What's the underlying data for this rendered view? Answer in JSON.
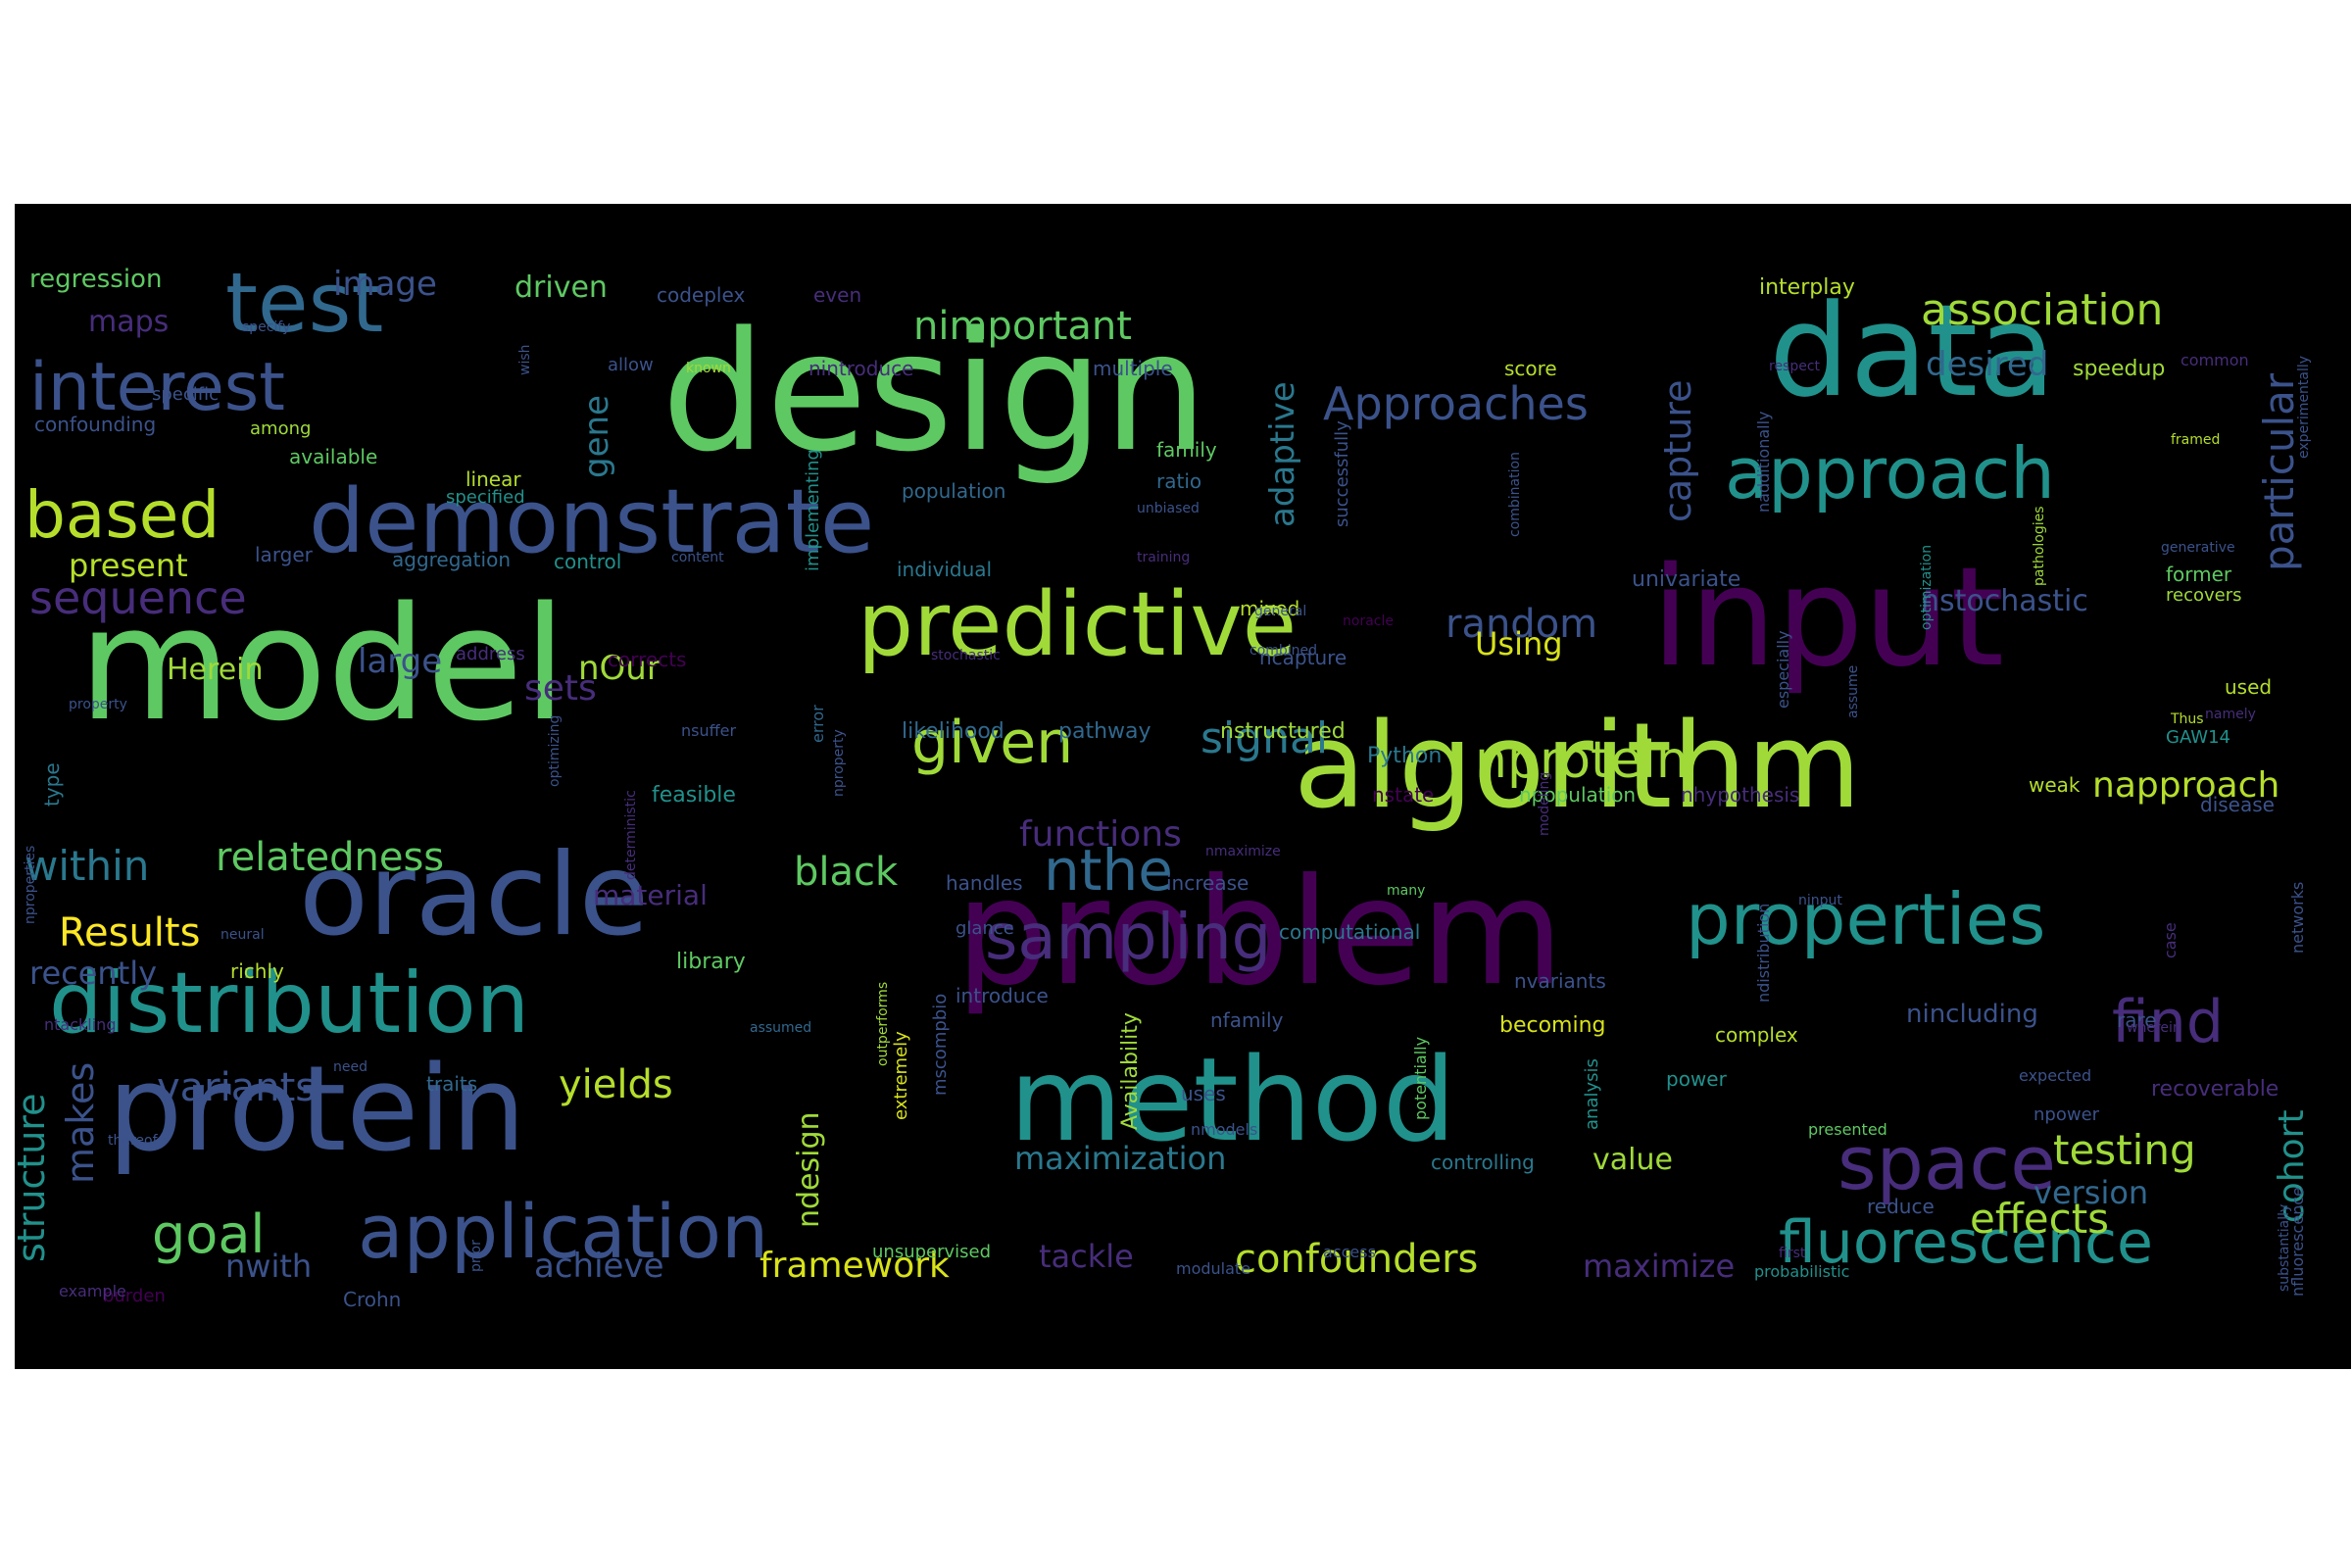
{
  "background_color": "#000000",
  "page_color": "#ffffff",
  "colormap": "viridis",
  "words": [
    {
      "text": "design",
      "size": 168,
      "color": "#5ec962"
    },
    {
      "text": "model",
      "size": 160,
      "color": "#5ec962"
    },
    {
      "text": "problem",
      "size": 150,
      "color": "#440154"
    },
    {
      "text": "input",
      "size": 140,
      "color": "#440154"
    },
    {
      "text": "data",
      "size": 130,
      "color": "#21918c"
    },
    {
      "text": "algorithm",
      "size": 120,
      "color": "#a0da39"
    },
    {
      "text": "protein",
      "size": 120,
      "color": "#3b528b"
    },
    {
      "text": "method",
      "size": 118,
      "color": "#21918c"
    },
    {
      "text": "oracle",
      "size": 116,
      "color": "#3b528b"
    },
    {
      "text": "demonstrate",
      "size": 90,
      "color": "#3b528b"
    },
    {
      "text": "predictive",
      "size": 90,
      "color": "#a0da39"
    },
    {
      "text": "distribution",
      "size": 86,
      "color": "#21918c"
    },
    {
      "text": "test",
      "size": 84,
      "color": "#31688e"
    },
    {
      "text": "application",
      "size": 76,
      "color": "#3b528b"
    },
    {
      "text": "space",
      "size": 76,
      "color": "#472d7b"
    },
    {
      "text": "approach",
      "size": 72,
      "color": "#21918c"
    },
    {
      "text": "properties",
      "size": 72,
      "color": "#21918c"
    },
    {
      "text": "interest",
      "size": 68,
      "color": "#3b528b"
    },
    {
      "text": "based",
      "size": 66,
      "color": "#b5de2b"
    },
    {
      "text": "sampling",
      "size": 64,
      "color": "#472d7b"
    },
    {
      "text": "fluorescence",
      "size": 60,
      "color": "#21918c"
    },
    {
      "text": "given",
      "size": 60,
      "color": "#a0da39"
    },
    {
      "text": "find",
      "size": 60,
      "color": "#472d7b"
    },
    {
      "text": "nthe",
      "size": 58,
      "color": "#31688e"
    },
    {
      "text": "goal",
      "size": 54,
      "color": "#5ec962"
    },
    {
      "text": "nprotein",
      "size": 52,
      "color": "#a0da39"
    },
    {
      "text": "sequence",
      "size": 46,
      "color": "#472d7b"
    },
    {
      "text": "Approaches",
      "size": 46,
      "color": "#3b528b"
    },
    {
      "text": "association",
      "size": 44,
      "color": "#a0da39"
    },
    {
      "text": "signal",
      "size": 44,
      "color": "#2a788e"
    },
    {
      "text": "within",
      "size": 42,
      "color": "#2a788e"
    },
    {
      "text": "testing",
      "size": 42,
      "color": "#a0da39"
    },
    {
      "text": "effects",
      "size": 42,
      "color": "#a0da39"
    },
    {
      "text": "particular",
      "size": 42,
      "color": "#3b528b"
    },
    {
      "text": "nimportant",
      "size": 40,
      "color": "#5ec962"
    },
    {
      "text": "variants",
      "size": 40,
      "color": "#3b528b"
    },
    {
      "text": "relatedness",
      "size": 40,
      "color": "#5ec962"
    },
    {
      "text": "Results",
      "size": 40,
      "color": "#fde725"
    },
    {
      "text": "black",
      "size": 40,
      "color": "#5ec962"
    },
    {
      "text": "yields",
      "size": 40,
      "color": "#b5de2b"
    },
    {
      "text": "random",
      "size": 40,
      "color": "#3b528b"
    },
    {
      "text": "confounders",
      "size": 40,
      "color": "#b5de2b"
    },
    {
      "text": "napproach",
      "size": 36,
      "color": "#b5de2b"
    },
    {
      "text": "framework",
      "size": 36,
      "color": "#d8e219"
    },
    {
      "text": "sets",
      "size": 36,
      "color": "#472d7b"
    },
    {
      "text": "capture",
      "size": 38,
      "color": "#3b528b"
    },
    {
      "text": "structure",
      "size": 38,
      "color": "#21918c"
    },
    {
      "text": "functions",
      "size": 36,
      "color": "#472d7b"
    },
    {
      "text": "maximization",
      "size": 32,
      "color": "#2a788e"
    },
    {
      "text": "achieve",
      "size": 34,
      "color": "#3b528b"
    },
    {
      "text": "image",
      "size": 34,
      "color": "#3b528b"
    },
    {
      "text": "large",
      "size": 34,
      "color": "#3b528b"
    },
    {
      "text": "nOur",
      "size": 34,
      "color": "#a0da39"
    },
    {
      "text": "present",
      "size": 32,
      "color": "#b5de2b"
    },
    {
      "text": "Herein",
      "size": 30,
      "color": "#a0da39"
    },
    {
      "text": "recently",
      "size": 32,
      "color": "#3b528b"
    },
    {
      "text": "desired",
      "size": 34,
      "color": "#31688e"
    },
    {
      "text": "makes",
      "size": 38,
      "color": "#3b528b"
    },
    {
      "text": "cohort",
      "size": 36,
      "color": "#21918c"
    },
    {
      "text": "adaptive",
      "size": 34,
      "color": "#2a788e"
    },
    {
      "text": "gene",
      "size": 34,
      "color": "#2a788e"
    },
    {
      "text": "ndesign",
      "size": 30,
      "color": "#a0da39"
    },
    {
      "text": "tackle",
      "size": 32,
      "color": "#472d7b"
    },
    {
      "text": "maximize",
      "size": 32,
      "color": "#472d7b"
    },
    {
      "text": "nwith",
      "size": 32,
      "color": "#3b528b"
    },
    {
      "text": "version",
      "size": 32,
      "color": "#31688e"
    },
    {
      "text": "value",
      "size": 30,
      "color": "#a0da39"
    },
    {
      "text": "nstochastic",
      "size": 30,
      "color": "#3b528b"
    },
    {
      "text": "Using",
      "size": 32,
      "color": "#d8e219"
    },
    {
      "text": "driven",
      "size": 30,
      "color": "#5ec962"
    },
    {
      "text": "maps",
      "size": 30,
      "color": "#472d7b"
    },
    {
      "text": "regression",
      "size": 26,
      "color": "#5ec962"
    },
    {
      "text": "material",
      "size": 28,
      "color": "#472d7b"
    },
    {
      "text": "nincluding",
      "size": 26,
      "color": "#3b528b"
    },
    {
      "text": "recoverable",
      "size": 22,
      "color": "#472d7b"
    },
    {
      "text": "speedup",
      "size": 22,
      "color": "#a0da39"
    },
    {
      "text": "interplay",
      "size": 22,
      "color": "#b5de2b"
    },
    {
      "text": "likelihood",
      "size": 22,
      "color": "#31688e"
    },
    {
      "text": "pathway",
      "size": 22,
      "color": "#31688e"
    },
    {
      "text": "nstructured",
      "size": 22,
      "color": "#a0da39"
    },
    {
      "text": "Python",
      "size": 22,
      "color": "#2a788e"
    },
    {
      "text": "nstate",
      "size": 20,
      "color": "#440154"
    },
    {
      "text": "npopulation",
      "size": 20,
      "color": "#5ec962"
    },
    {
      "text": "nhypothesis",
      "size": 20,
      "color": "#472d7b"
    },
    {
      "text": "univariate",
      "size": 22,
      "color": "#3b528b"
    },
    {
      "text": "ncapture",
      "size": 20,
      "color": "#3b528b"
    },
    {
      "text": "mixed",
      "size": 20,
      "color": "#b5de2b"
    },
    {
      "text": "feasible",
      "size": 22,
      "color": "#21918c"
    },
    {
      "text": "library",
      "size": 22,
      "color": "#5ec962"
    },
    {
      "text": "richly",
      "size": 20,
      "color": "#b5de2b"
    },
    {
      "text": "confounding",
      "size": 20,
      "color": "#3b528b"
    },
    {
      "text": "available",
      "size": 20,
      "color": "#5ec962"
    },
    {
      "text": "linear",
      "size": 20,
      "color": "#b5de2b"
    },
    {
      "text": "specified",
      "size": 18,
      "color": "#21918c"
    },
    {
      "text": "larger",
      "size": 20,
      "color": "#3b528b"
    },
    {
      "text": "aggregation",
      "size": 20,
      "color": "#31688e"
    },
    {
      "text": "control",
      "size": 20,
      "color": "#21918c"
    },
    {
      "text": "individual",
      "size": 20,
      "color": "#2a788e"
    },
    {
      "text": "population",
      "size": 20,
      "color": "#31688e"
    },
    {
      "text": "family",
      "size": 20,
      "color": "#5ec962"
    },
    {
      "text": "ratio",
      "size": 20,
      "color": "#31688e"
    },
    {
      "text": "multiple",
      "size": 20,
      "color": "#3b528b"
    },
    {
      "text": "nintroduce",
      "size": 20,
      "color": "#472d7b"
    },
    {
      "text": "codeplex",
      "size": 20,
      "color": "#3b528b"
    },
    {
      "text": "even",
      "size": 20,
      "color": "#472d7b"
    },
    {
      "text": "score",
      "size": 20,
      "color": "#b5de2b"
    },
    {
      "text": "weak",
      "size": 20,
      "color": "#b5de2b"
    },
    {
      "text": "GAW14",
      "size": 18,
      "color": "#21918c"
    },
    {
      "text": "disease",
      "size": 20,
      "color": "#3b528b"
    },
    {
      "text": "used",
      "size": 20,
      "color": "#b5de2b"
    },
    {
      "text": "former",
      "size": 20,
      "color": "#5ec962"
    },
    {
      "text": "recovers",
      "size": 18,
      "color": "#a0da39"
    },
    {
      "text": "introduce",
      "size": 20,
      "color": "#3b528b"
    },
    {
      "text": "handles",
      "size": 20,
      "color": "#3b528b"
    },
    {
      "text": "increase",
      "size": 20,
      "color": "#3b528b"
    },
    {
      "text": "computational",
      "size": 20,
      "color": "#2a788e"
    },
    {
      "text": "nvariants",
      "size": 20,
      "color": "#3b528b"
    },
    {
      "text": "becoming",
      "size": 22,
      "color": "#d8e219"
    },
    {
      "text": "nfamily",
      "size": 20,
      "color": "#3b528b"
    },
    {
      "text": "complex",
      "size": 20,
      "color": "#b5de2b"
    },
    {
      "text": "power",
      "size": 20,
      "color": "#21918c"
    },
    {
      "text": "rare",
      "size": 20,
      "color": "#3b528b"
    },
    {
      "text": "npower",
      "size": 18,
      "color": "#3b528b"
    },
    {
      "text": "expected",
      "size": 16,
      "color": "#3b528b"
    },
    {
      "text": "presented",
      "size": 16,
      "color": "#5ec962"
    },
    {
      "text": "reduce",
      "size": 20,
      "color": "#3b528b"
    },
    {
      "text": "probabilistic",
      "size": 16,
      "color": "#21918c"
    },
    {
      "text": "controlling",
      "size": 20,
      "color": "#2a788e"
    },
    {
      "text": "nmodels",
      "size": 16,
      "color": "#3b528b"
    },
    {
      "text": "uses",
      "size": 20,
      "color": "#3b528b"
    },
    {
      "text": "unsupervised",
      "size": 18,
      "color": "#5ec962"
    },
    {
      "text": "modulate",
      "size": 16,
      "color": "#3b528b"
    },
    {
      "text": "access",
      "size": 16,
      "color": "#3b528b"
    },
    {
      "text": "Crohn",
      "size": 20,
      "color": "#3b528b"
    },
    {
      "text": "burden",
      "size": 18,
      "color": "#440154"
    },
    {
      "text": "example",
      "size": 16,
      "color": "#472d7b"
    },
    {
      "text": "thereof",
      "size": 14,
      "color": "#3b528b"
    },
    {
      "text": "traits",
      "size": 20,
      "color": "#31688e"
    },
    {
      "text": "need",
      "size": 14,
      "color": "#3b528b"
    },
    {
      "text": "assumed",
      "size": 14,
      "color": "#31688e"
    },
    {
      "text": "ntackling",
      "size": 16,
      "color": "#472d7b"
    },
    {
      "text": "glance",
      "size": 18,
      "color": "#3b528b"
    },
    {
      "text": "neural",
      "size": 14,
      "color": "#3b528b"
    },
    {
      "text": "address",
      "size": 18,
      "color": "#472d7b"
    },
    {
      "text": "corrects",
      "size": 20,
      "color": "#440154"
    },
    {
      "text": "stochastic",
      "size": 14,
      "color": "#472d7b"
    },
    {
      "text": "error",
      "size": 16,
      "color": "#31688e"
    },
    {
      "text": "type",
      "size": 20,
      "color": "#2a788e"
    },
    {
      "text": "property",
      "size": 14,
      "color": "#3b528b"
    },
    {
      "text": "nsuffer",
      "size": 16,
      "color": "#3b528b"
    },
    {
      "text": "specify",
      "size": 14,
      "color": "#3b528b"
    },
    {
      "text": "specific",
      "size": 18,
      "color": "#3b528b"
    },
    {
      "text": "among",
      "size": 18,
      "color": "#a0da39"
    },
    {
      "text": "allow",
      "size": 18,
      "color": "#3b528b"
    },
    {
      "text": "known",
      "size": 14,
      "color": "#a0da39"
    },
    {
      "text": "content",
      "size": 14,
      "color": "#3b528b"
    },
    {
      "text": "training",
      "size": 14,
      "color": "#472d7b"
    },
    {
      "text": "general",
      "size": 14,
      "color": "#3b528b"
    },
    {
      "text": "combined",
      "size": 14,
      "color": "#3b528b"
    },
    {
      "text": "noracle",
      "size": 14,
      "color": "#440154"
    },
    {
      "text": "unbiased",
      "size": 14,
      "color": "#3b528b"
    },
    {
      "text": "respect",
      "size": 14,
      "color": "#472d7b"
    },
    {
      "text": "framed",
      "size": 14,
      "color": "#b5de2b"
    },
    {
      "text": "common",
      "size": 16,
      "color": "#472d7b"
    },
    {
      "text": "generative",
      "size": 14,
      "color": "#3b528b"
    },
    {
      "text": "namely",
      "size": 14,
      "color": "#472d7b"
    },
    {
      "text": "Thus",
      "size": 14,
      "color": "#b5de2b"
    },
    {
      "text": "nmaximize",
      "size": 14,
      "color": "#472d7b"
    },
    {
      "text": "many",
      "size": 14,
      "color": "#5ec962"
    },
    {
      "text": "ninput",
      "size": 14,
      "color": "#3b528b"
    },
    {
      "text": "wherein",
      "size": 14,
      "color": "#472d7b"
    },
    {
      "text": "first",
      "size": 14,
      "color": "#472d7b"
    },
    {
      "text": "nwherein",
      "size": 14,
      "color": "#440154"
    },
    {
      "text": "successfully",
      "size": 18,
      "color": "#3b528b"
    },
    {
      "text": "wish",
      "size": 14,
      "color": "#3b528b"
    },
    {
      "text": "implementing",
      "size": 18,
      "color": "#21918c"
    },
    {
      "text": "optimizing",
      "size": 14,
      "color": "#3b528b"
    },
    {
      "text": "deterministic",
      "size": 14,
      "color": "#472d7b"
    },
    {
      "text": "nproperties",
      "size": 14,
      "color": "#3b528b"
    },
    {
      "text": "nproperty",
      "size": 14,
      "color": "#3b528b"
    },
    {
      "text": "outperforms",
      "size": 14,
      "color": "#a0da39"
    },
    {
      "text": "mscompbio",
      "size": 18,
      "color": "#3b528b"
    },
    {
      "text": "extremely",
      "size": 18,
      "color": "#d8e219"
    },
    {
      "text": "Availability",
      "size": 22,
      "color": "#a0da39"
    },
    {
      "text": "prior",
      "size": 14,
      "color": "#3b528b"
    },
    {
      "text": "potentially",
      "size": 16,
      "color": "#5ec962"
    },
    {
      "text": "analysis",
      "size": 18,
      "color": "#21918c"
    },
    {
      "text": "modeling",
      "size": 14,
      "color": "#472d7b"
    },
    {
      "text": "combination",
      "size": 14,
      "color": "#3b528b"
    },
    {
      "text": "nadditionally",
      "size": 16,
      "color": "#3b528b"
    },
    {
      "text": "pathologies",
      "size": 14,
      "color": "#a0da39"
    },
    {
      "text": "especially",
      "size": 16,
      "color": "#3b528b"
    },
    {
      "text": "assume",
      "size": 14,
      "color": "#3b528b"
    },
    {
      "text": "optimization",
      "size": 14,
      "color": "#21918c"
    },
    {
      "text": "ndistribution",
      "size": 16,
      "color": "#3b528b"
    },
    {
      "text": "case",
      "size": 16,
      "color": "#472d7b"
    },
    {
      "text": "experimentally",
      "size": 14,
      "color": "#3b528b"
    },
    {
      "text": "networks",
      "size": 16,
      "color": "#3b528b"
    },
    {
      "text": "substantially",
      "size": 14,
      "color": "#3b528b"
    },
    {
      "text": "nfluorescence",
      "size": 16,
      "color": "#3b528b"
    }
  ]
}
